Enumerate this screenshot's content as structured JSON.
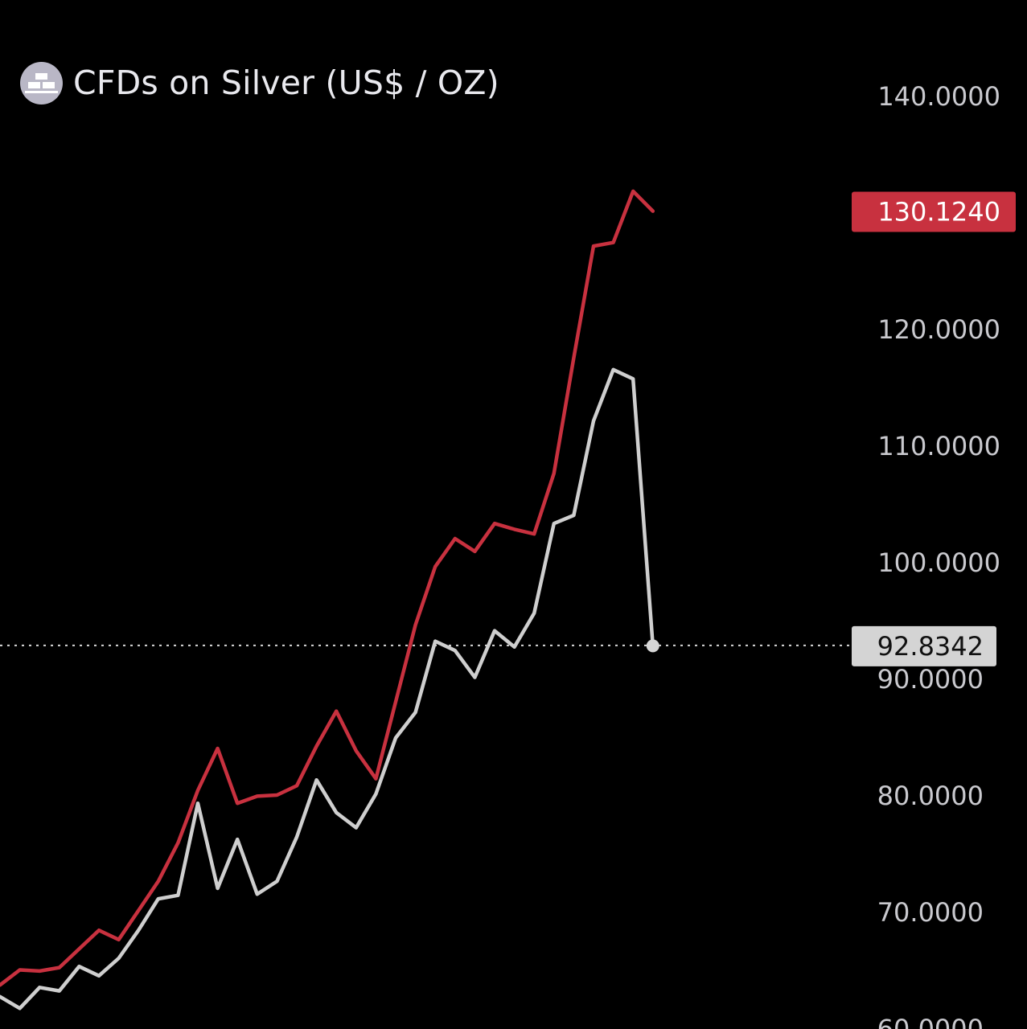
{
  "header": {
    "title": "CFDs on Silver (US$ / OZ)",
    "logo_icon": "silver-bars-icon"
  },
  "chart_data": {
    "type": "line",
    "title": "CFDs on Silver (US$ / OZ)",
    "y_axis": {
      "position": "right",
      "ticks": [
        60,
        70,
        80,
        90,
        100,
        110,
        120,
        140
      ],
      "tick_labels": [
        "60.0000",
        "70.0000",
        "80.0000",
        "90.0000",
        "100.0000",
        "110.0000",
        "120.0000",
        "140.0000"
      ],
      "ylim": [
        60,
        140
      ]
    },
    "series": [
      {
        "name": "red",
        "color": "#c8313f",
        "last_value_label": "130.1240",
        "values": [
          63.7,
          65.0,
          64.9,
          65.2,
          66.8,
          68.4,
          67.6,
          70.1,
          72.6,
          75.9,
          80.4,
          84.0,
          79.3,
          79.9,
          80.0,
          80.8,
          84.2,
          87.2,
          83.8,
          81.4,
          88.0,
          94.6,
          99.6,
          102.0,
          100.9,
          103.3,
          102.8,
          102.4,
          107.6,
          117.5,
          127.1,
          127.4,
          131.8,
          130.1
        ]
      },
      {
        "name": "white",
        "color": "#cfcfcf",
        "last_value_label": "92.8342",
        "values": [
          62.7,
          61.7,
          63.5,
          63.2,
          65.3,
          64.5,
          66.0,
          68.4,
          71.1,
          71.4,
          79.3,
          72.0,
          76.2,
          71.5,
          72.6,
          76.4,
          81.3,
          78.5,
          77.2,
          80.1,
          84.9,
          87.1,
          93.2,
          92.4,
          90.1,
          94.1,
          92.7,
          95.6,
          103.3,
          104.0,
          112.1,
          116.5,
          115.7,
          92.8
        ]
      }
    ],
    "current_price_line": 92.8342,
    "colors": {
      "background": "#000000",
      "red": "#c8313f",
      "white": "#cfcfcf",
      "tick_text": "#c9c9ce"
    }
  }
}
